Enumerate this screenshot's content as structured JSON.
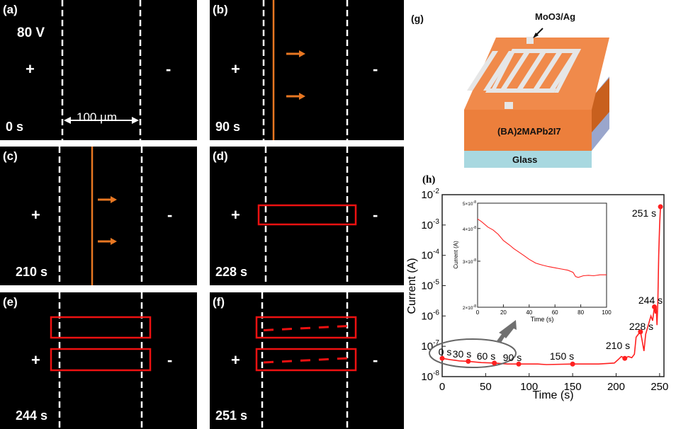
{
  "panels": [
    {
      "letter": "(a)",
      "extra": "80 V",
      "time": "0 s",
      "plus": "+",
      "minus": "-",
      "scale": "100 µm"
    },
    {
      "letter": "(b)",
      "time": "90 s",
      "plus": "+",
      "minus": "-"
    },
    {
      "letter": "(c)",
      "time": "210 s",
      "plus": "+",
      "minus": "-"
    },
    {
      "letter": "(d)",
      "time": "228 s",
      "plus": "+",
      "minus": "-"
    },
    {
      "letter": "(e)",
      "time": "244 s",
      "plus": "+",
      "minus": "-"
    },
    {
      "letter": "(f)",
      "time": "251 s",
      "plus": "+",
      "minus": "-"
    }
  ],
  "schematic": {
    "letter": "(g)",
    "electrode": "MoO3/Ag",
    "layer": "(BA)2MAPb2I7",
    "substrate": "Glass"
  },
  "colors": {
    "orange": "#e87722",
    "red": "#e11",
    "curve": "#ff2020",
    "layer": "#f08a4b",
    "glass": "#a8d8e0"
  },
  "chart_data": [
    {
      "type": "line",
      "label": "(h)",
      "xlabel": "Time (s)",
      "ylabel": "Current (A)",
      "xlim": [
        0,
        255
      ],
      "ylim": [
        1e-08,
        0.01
      ],
      "yscale": "log",
      "xticks": [
        "0",
        "50",
        "100",
        "150",
        "200",
        "250"
      ],
      "yticks": [
        "10-8",
        "10-7",
        "10-6",
        "10-5",
        "10-4",
        "10-3",
        "10-2"
      ],
      "x": [
        0,
        10,
        20,
        30,
        45,
        60,
        75,
        90,
        110,
        120,
        150,
        180,
        198,
        203,
        206,
        210,
        214,
        218,
        221,
        223,
        226,
        228,
        230,
        232,
        234,
        237,
        240,
        242,
        244,
        245,
        246,
        247,
        248,
        249,
        250,
        251
      ],
      "y": [
        4e-08,
        3.6e-08,
        3.3e-08,
        3.2e-08,
        2.9e-08,
        2.8e-08,
        2.6e-08,
        2.6e-08,
        2.6e-08,
        2.5e-08,
        2.6e-08,
        2.6e-08,
        2.8e-08,
        3.8e-08,
        4.6e-08,
        4e-08,
        4.6e-08,
        4.2e-08,
        5.5e-08,
        2e-07,
        2.6e-07,
        3e-07,
        1.5e-07,
        7e-08,
        2.5e-07,
        5e-07,
        1e-06,
        7e-07,
        2e-06,
        1.2e-06,
        2e-06,
        5e-07,
        3e-06,
        0.0001,
        0.001,
        0.004
      ],
      "annotations": [
        {
          "text": "0 s",
          "x": 0,
          "y": 4e-08
        },
        {
          "text": "30 s",
          "x": 30,
          "y": 3.2e-08
        },
        {
          "text": "60 s",
          "x": 60,
          "y": 2.8e-08
        },
        {
          "text": "90 s",
          "x": 88,
          "y": 2.6e-08
        },
        {
          "text": "150 s",
          "x": 150,
          "y": 2.6e-08
        },
        {
          "text": "210 s",
          "x": 210,
          "y": 4e-08
        },
        {
          "text": "228 s",
          "x": 228,
          "y": 3e-07
        },
        {
          "text": "244 s",
          "x": 244,
          "y": 2e-06
        },
        {
          "text": "251 s",
          "x": 251,
          "y": 0.004
        }
      ]
    },
    {
      "type": "line",
      "label": "inset",
      "xlabel": "Time (s)",
      "ylabel": "Current (A)",
      "xlim": [
        0,
        100
      ],
      "ylim": [
        2e-08,
        5e-08
      ],
      "yscale": "log",
      "xticks": [
        "0",
        "20",
        "40",
        "60",
        "80",
        "100"
      ],
      "yticks": [
        "2×10-8",
        "3×10-8",
        "4×10-8",
        "5×10-8"
      ],
      "x": [
        0,
        3,
        8,
        12,
        16,
        20,
        25,
        28,
        32,
        36,
        40,
        45,
        50,
        55,
        60,
        65,
        70,
        74,
        76,
        78,
        82,
        86,
        90,
        95,
        100
      ],
      "y": [
        4.35e-08,
        4.25e-08,
        4.05e-08,
        3.95e-08,
        3.8e-08,
        3.6e-08,
        3.45e-08,
        3.35e-08,
        3.25e-08,
        3.15e-08,
        3.05e-08,
        2.95e-08,
        2.9e-08,
        2.86e-08,
        2.83e-08,
        2.8e-08,
        2.77e-08,
        2.72e-08,
        2.62e-08,
        2.6e-08,
        2.64e-08,
        2.65e-08,
        2.64e-08,
        2.66e-08,
        2.66e-08
      ]
    }
  ]
}
